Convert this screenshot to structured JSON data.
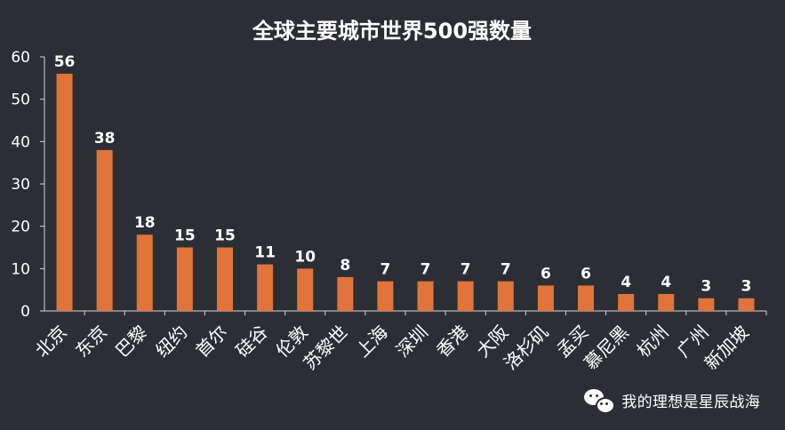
{
  "chart_data": {
    "type": "bar",
    "title": "全球主要城市世界500强数量",
    "categories": [
      "北京",
      "东京",
      "巴黎",
      "纽约",
      "首尔",
      "硅谷",
      "伦敦",
      "苏黎世",
      "上海",
      "深圳",
      "香港",
      "大阪",
      "洛杉矶",
      "孟买",
      "慕尼黑",
      "杭州",
      "广州",
      "新加坡"
    ],
    "values": [
      56,
      38,
      18,
      15,
      15,
      11,
      10,
      8,
      7,
      7,
      7,
      7,
      6,
      6,
      4,
      4,
      3,
      3
    ],
    "ylim": [
      0,
      60
    ],
    "yticks": [
      0,
      10,
      20,
      30,
      40,
      50,
      60
    ],
    "grid": false,
    "colors": {
      "background": "#2b2f35",
      "bar": "#e0743a",
      "text": "#ffffff"
    }
  },
  "watermark": {
    "icon": "wechat-icon",
    "text": "我的理想是星辰战海"
  }
}
